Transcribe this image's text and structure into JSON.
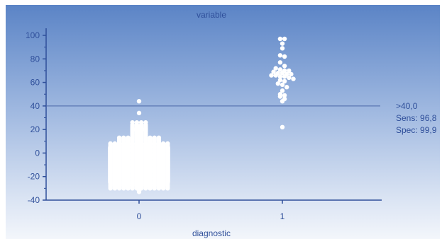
{
  "chart_data": {
    "type": "scatter",
    "title": "variable",
    "xlabel": "diagnostic",
    "ylabel": "",
    "categories": [
      "0",
      "1"
    ],
    "ylim": [
      -40,
      100
    ],
    "yticks": [
      -40,
      -20,
      0,
      20,
      40,
      60,
      80,
      100
    ],
    "grid": false,
    "cutoff": {
      "value": 40,
      "labels": [
        ">40,0",
        "Sens: 96,8",
        "Spec: 99,9"
      ]
    },
    "series": [
      {
        "category": "0",
        "values": [
          44,
          34,
          26,
          24,
          23,
          22,
          21,
          21,
          20,
          20,
          20,
          19,
          19,
          18,
          17,
          16,
          15,
          14,
          13,
          12,
          11,
          10,
          9,
          8,
          8,
          7,
          6,
          5,
          4,
          3,
          2,
          1,
          0,
          -1,
          -2,
          -3,
          -4,
          -5,
          -6,
          -7,
          -8,
          -9,
          -10,
          -11,
          -12,
          -13,
          -14,
          -15,
          -16,
          -17,
          -18,
          -19,
          -20,
          -21,
          -22,
          -23,
          -24,
          -25,
          -26,
          -27,
          -28,
          -29,
          -30,
          -31,
          -32,
          -33
        ]
      },
      {
        "category": "1",
        "values": [
          97,
          97,
          93,
          89,
          83,
          82,
          77,
          74,
          72,
          71,
          70,
          70,
          69,
          68,
          68,
          67,
          67,
          66,
          66,
          65,
          65,
          64,
          63,
          62,
          61,
          59,
          58,
          56,
          53,
          50,
          49,
          48,
          46,
          44,
          22
        ]
      }
    ]
  }
}
